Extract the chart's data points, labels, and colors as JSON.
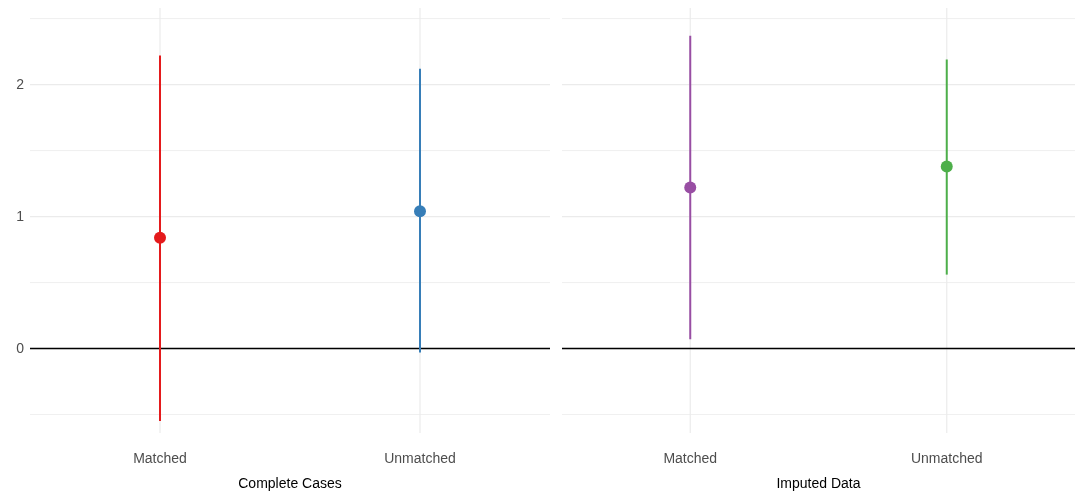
{
  "chart_data": [
    {
      "type": "scatter",
      "xlabel": "Complete Cases",
      "categories": [
        "Matched",
        "Unmatched"
      ],
      "values": [
        0.84,
        1.04
      ],
      "errors": [
        [
          -0.55,
          2.22
        ],
        [
          -0.03,
          2.12
        ]
      ],
      "colors": [
        "#e41a1c",
        "#377eb8"
      ],
      "ylim": [
        -0.64,
        2.58
      ],
      "yticks": [
        {
          "value": -0.5,
          "label": null
        },
        0,
        {
          "value": 0.5,
          "label": null
        },
        1,
        {
          "value": 1.5,
          "label": null
        },
        2,
        {
          "value": 2.5,
          "label": null
        }
      ],
      "grid": true,
      "marker": "circle",
      "ref_lines": [
        {
          "axis": "y",
          "value": 0,
          "color": "#000000"
        }
      ]
    },
    {
      "type": "scatter",
      "xlabel": "Imputed Data",
      "categories": [
        "Matched",
        "Unmatched"
      ],
      "values": [
        1.22,
        1.38
      ],
      "errors": [
        [
          0.07,
          2.37
        ],
        [
          0.56,
          2.19
        ]
      ],
      "colors": [
        "#984ea3",
        "#4daf4a"
      ],
      "ylim": [
        -0.64,
        2.58
      ],
      "yticks": [
        {
          "value": -0.5,
          "label": null
        },
        0,
        {
          "value": 0.5,
          "label": null
        },
        1,
        {
          "value": 1.5,
          "label": null
        },
        2,
        {
          "value": 2.5,
          "label": null
        }
      ],
      "grid": true,
      "marker": "circle",
      "tick_labels": "x",
      "ref_lines": [
        {
          "axis": "y",
          "value": 0,
          "color": "#000000"
        }
      ]
    }
  ]
}
